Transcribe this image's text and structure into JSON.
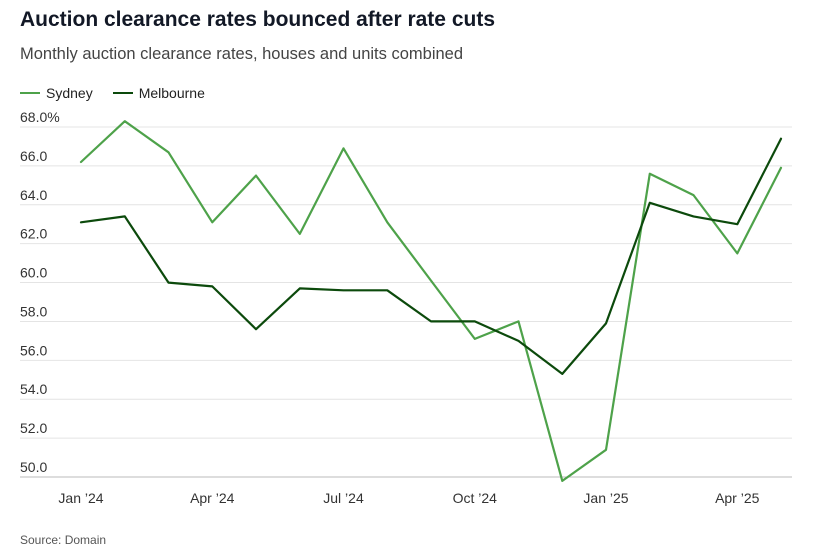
{
  "header": {
    "title": "Auction clearance rates bounced after rate cuts",
    "subtitle": "Monthly auction clearance rates, houses and units combined"
  },
  "footer": {
    "source": "Source: Domain"
  },
  "chart_data": {
    "type": "line",
    "x": [
      "Jan 2024",
      "Feb 2024",
      "Mar 2024",
      "Apr 2024",
      "May 2024",
      "Jun 2024",
      "Jul 2024",
      "Aug 2024",
      "Sep 2024",
      "Oct 2024",
      "Nov 2024",
      "Dec 2024",
      "Jan 2025",
      "Feb 2025",
      "Mar 2025",
      "Apr 2025",
      "May 2025"
    ],
    "x_tick_labels": [
      {
        "index": 0,
        "label": "Jan ’24"
      },
      {
        "index": 3,
        "label": "Apr ’24"
      },
      {
        "index": 6,
        "label": "Jul ’24"
      },
      {
        "index": 9,
        "label": "Oct ’24"
      },
      {
        "index": 12,
        "label": "Jan ’25"
      },
      {
        "index": 15,
        "label": "Apr ’25"
      }
    ],
    "y_ticks": [
      {
        "value": 50,
        "label": "50.0"
      },
      {
        "value": 52,
        "label": "52.0"
      },
      {
        "value": 54,
        "label": "54.0"
      },
      {
        "value": 56,
        "label": "56.0"
      },
      {
        "value": 58,
        "label": "58.0"
      },
      {
        "value": 60,
        "label": "60.0"
      },
      {
        "value": 62,
        "label": "62.0"
      },
      {
        "value": 64,
        "label": "64.0"
      },
      {
        "value": 66,
        "label": "66.0"
      },
      {
        "value": 68,
        "label": "68.0%"
      }
    ],
    "ylim": [
      50,
      68
    ],
    "grid": true,
    "legend_position": "top-left",
    "series": [
      {
        "name": "Sydney",
        "color": "#4ea24a",
        "values": [
          66.2,
          68.3,
          66.7,
          63.1,
          65.5,
          62.5,
          66.9,
          63.1,
          60.1,
          57.1,
          58.0,
          49.8,
          51.4,
          65.6,
          64.5,
          61.5,
          65.9
        ]
      },
      {
        "name": "Melbourne",
        "color": "#0c4a0c",
        "values": [
          63.1,
          63.4,
          60.0,
          59.8,
          57.6,
          59.7,
          59.6,
          59.6,
          58.0,
          58.0,
          57.0,
          55.3,
          57.9,
          64.1,
          63.4,
          63.0,
          67.4
        ]
      }
    ]
  }
}
